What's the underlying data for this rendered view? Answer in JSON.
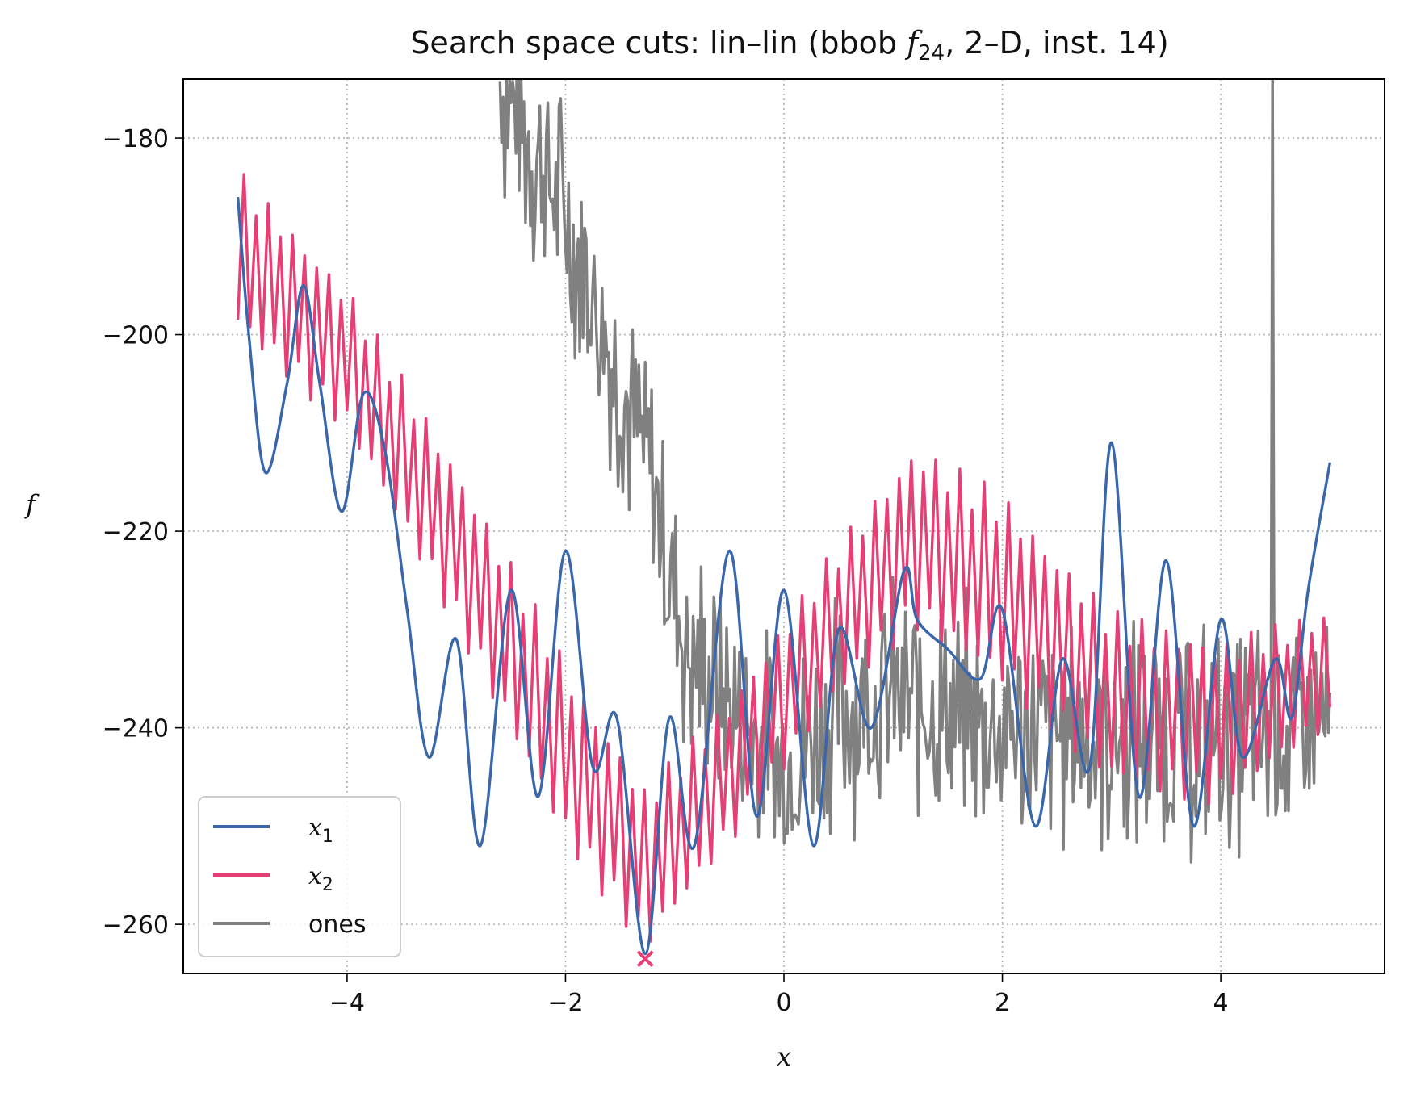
{
  "chart_data": {
    "type": "line",
    "title": "Search space cuts: lin–lin (bbob f24, 2–D, inst. 14)",
    "title_parts": {
      "prefix": "Search space cuts: lin–lin (bbob ",
      "func_symbol": "f",
      "func_sub": "24",
      "suffix": ", 2–D, inst. 14)"
    },
    "xlabel": "x",
    "ylabel": "f",
    "xlim": [
      -5.5,
      5.5
    ],
    "ylim": [
      -265,
      -174
    ],
    "x_ticks": [
      -4,
      -2,
      0,
      2,
      4
    ],
    "x_tick_labels": [
      "−4",
      "−2",
      "0",
      "2",
      "4"
    ],
    "y_ticks": [
      -260,
      -240,
      -220,
      -200,
      -180
    ],
    "y_tick_labels": [
      "−260",
      "−240",
      "−220",
      "−200",
      "−180"
    ],
    "grid": true,
    "legend_position": "lower-left",
    "legend": [
      {
        "label": "x",
        "sub": "1",
        "color": "#3a67ab"
      },
      {
        "label": "x",
        "sub": "2",
        "color": "#e63f74"
      },
      {
        "label": "ones",
        "sub": "",
        "color": "#808080"
      }
    ],
    "series": [
      {
        "name": "x1",
        "color": "#3a67ab",
        "x_range": [
          -5.0,
          5.0
        ],
        "approx_points": [
          [
            -5.0,
            -186
          ],
          [
            -4.9,
            -200
          ],
          [
            -4.75,
            -214
          ],
          [
            -4.55,
            -205
          ],
          [
            -4.4,
            -195
          ],
          [
            -4.25,
            -205
          ],
          [
            -4.05,
            -218
          ],
          [
            -3.85,
            -206
          ],
          [
            -3.65,
            -212
          ],
          [
            -3.45,
            -228
          ],
          [
            -3.25,
            -243
          ],
          [
            -3.0,
            -231
          ],
          [
            -2.78,
            -252
          ],
          [
            -2.5,
            -226
          ],
          [
            -2.25,
            -247
          ],
          [
            -2.0,
            -222
          ],
          [
            -1.75,
            -244
          ],
          [
            -1.53,
            -239
          ],
          [
            -1.27,
            -263
          ],
          [
            -1.05,
            -239
          ],
          [
            -0.82,
            -252
          ],
          [
            -0.5,
            -222
          ],
          [
            -0.25,
            -249
          ],
          [
            0.0,
            -226
          ],
          [
            0.27,
            -252
          ],
          [
            0.5,
            -230
          ],
          [
            0.8,
            -240
          ],
          [
            1.1,
            -224
          ],
          [
            1.22,
            -229
          ],
          [
            1.5,
            -232
          ],
          [
            1.8,
            -235
          ],
          [
            2.0,
            -228
          ],
          [
            2.3,
            -250
          ],
          [
            2.55,
            -233
          ],
          [
            2.8,
            -244
          ],
          [
            3.0,
            -211
          ],
          [
            3.25,
            -247
          ],
          [
            3.5,
            -223
          ],
          [
            3.75,
            -250
          ],
          [
            4.0,
            -229
          ],
          [
            4.2,
            -243
          ],
          [
            4.5,
            -233
          ],
          [
            4.65,
            -239
          ],
          [
            4.8,
            -226
          ],
          [
            5.0,
            -213
          ]
        ]
      },
      {
        "name": "x2",
        "color": "#e63f74",
        "x_range": [
          -5.0,
          5.0
        ],
        "band_upper": [
          [
            -5.0,
            -183
          ],
          [
            -4.0,
            -195
          ],
          [
            -3.0,
            -213
          ],
          [
            -2.0,
            -233
          ],
          [
            -1.27,
            -246
          ],
          [
            -0.5,
            -237
          ],
          [
            0.5,
            -221
          ],
          [
            1.2,
            -211
          ],
          [
            2.0,
            -216
          ],
          [
            3.0,
            -228
          ],
          [
            4.0,
            -231
          ],
          [
            5.0,
            -228
          ]
        ],
        "band_lower": [
          [
            -5.0,
            -200
          ],
          [
            -4.0,
            -210
          ],
          [
            -3.0,
            -230
          ],
          [
            -2.0,
            -252
          ],
          [
            -1.27,
            -263
          ],
          [
            -0.5,
            -252
          ],
          [
            0.5,
            -237
          ],
          [
            1.2,
            -230
          ],
          [
            2.0,
            -236
          ],
          [
            3.0,
            -246
          ],
          [
            4.0,
            -248
          ],
          [
            5.0,
            -240
          ]
        ],
        "oscillation_count": 90
      },
      {
        "name": "ones",
        "color": "#808080",
        "x_range": [
          -2.6,
          5.0
        ],
        "trend": [
          [
            -2.6,
            -174
          ],
          [
            -2.0,
            -188
          ],
          [
            -1.5,
            -205
          ],
          [
            -1.2,
            -215
          ],
          [
            -0.9,
            -232
          ],
          [
            -0.5,
            -238
          ],
          [
            0.0,
            -244
          ],
          [
            0.5,
            -238
          ],
          [
            1.0,
            -237
          ],
          [
            2.0,
            -240
          ],
          [
            3.0,
            -241
          ],
          [
            4.0,
            -241
          ],
          [
            5.0,
            -240
          ]
        ],
        "noise_amplitude": 10,
        "spike": {
          "x": 4.47,
          "from": -240,
          "to": -174
        }
      }
    ],
    "optimum_marker": {
      "x": -1.27,
      "y": -263.5,
      "symbol": "x",
      "color": "#e63f74"
    }
  }
}
